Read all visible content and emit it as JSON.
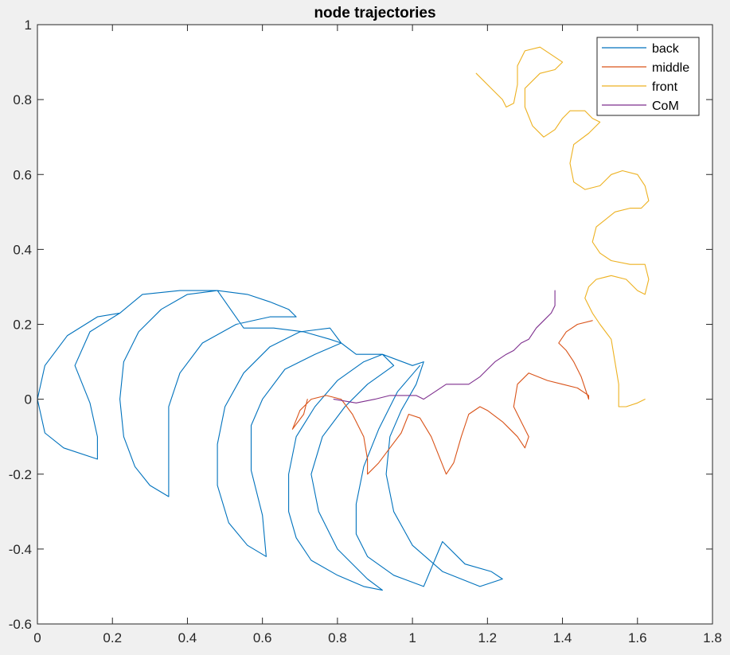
{
  "chart_data": {
    "type": "line",
    "title": "node trajectories",
    "xlabel": "",
    "ylabel": "",
    "xlim": [
      0,
      1.8
    ],
    "ylim": [
      -0.6,
      1
    ],
    "xticks": [
      0,
      0.2,
      0.4,
      0.6,
      0.8,
      1,
      1.2,
      1.4,
      1.6,
      1.8
    ],
    "xtick_labels": [
      "0",
      "0.2",
      "0.4",
      "0.6",
      "0.8",
      "1",
      "1.2",
      "1.4",
      "1.6",
      "1.8"
    ],
    "yticks": [
      -0.6,
      -0.4,
      -0.2,
      0,
      0.2,
      0.4,
      0.6,
      0.8,
      1
    ],
    "ytick_labels": [
      "-0.6",
      "-0.4",
      "-0.2",
      "0",
      "0.2",
      "0.4",
      "0.6",
      "0.8",
      "1"
    ],
    "grid": false,
    "legend_position": "top-right",
    "series": [
      {
        "name": "back",
        "color": "#0072BD",
        "points": [
          [
            0.22,
            0.23
          ],
          [
            0.16,
            0.22
          ],
          [
            0.08,
            0.17
          ],
          [
            0.02,
            0.09
          ],
          [
            0.0,
            0.0
          ],
          [
            0.02,
            -0.09
          ],
          [
            0.07,
            -0.13
          ],
          [
            0.16,
            -0.16
          ],
          [
            0.16,
            -0.1
          ],
          [
            0.14,
            -0.01
          ],
          [
            0.1,
            0.09
          ],
          [
            0.14,
            0.18
          ],
          [
            0.22,
            0.23
          ],
          [
            0.22,
            0.23
          ],
          [
            0.28,
            0.28
          ],
          [
            0.38,
            0.29
          ],
          [
            0.48,
            0.29
          ],
          [
            0.56,
            0.28
          ],
          [
            0.62,
            0.26
          ],
          [
            0.67,
            0.24
          ],
          [
            0.69,
            0.22
          ],
          [
            0.62,
            0.22
          ],
          [
            0.53,
            0.2
          ],
          [
            0.44,
            0.15
          ],
          [
            0.38,
            0.07
          ],
          [
            0.35,
            -0.02
          ],
          [
            0.35,
            -0.13
          ],
          [
            0.35,
            -0.26
          ],
          [
            0.3,
            -0.23
          ],
          [
            0.26,
            -0.18
          ],
          [
            0.23,
            -0.1
          ],
          [
            0.22,
            0.0
          ],
          [
            0.23,
            0.1
          ],
          [
            0.27,
            0.18
          ],
          [
            0.33,
            0.24
          ],
          [
            0.4,
            0.28
          ],
          [
            0.48,
            0.29
          ],
          [
            0.48,
            0.29
          ],
          [
            0.48,
            0.29
          ],
          [
            0.55,
            0.19
          ],
          [
            0.63,
            0.19
          ],
          [
            0.71,
            0.18
          ],
          [
            0.78,
            0.16
          ],
          [
            0.81,
            0.15
          ],
          [
            0.74,
            0.12
          ],
          [
            0.66,
            0.08
          ],
          [
            0.6,
            0.0
          ],
          [
            0.57,
            -0.07
          ],
          [
            0.57,
            -0.19
          ],
          [
            0.6,
            -0.31
          ],
          [
            0.61,
            -0.42
          ],
          [
            0.56,
            -0.39
          ],
          [
            0.51,
            -0.33
          ],
          [
            0.48,
            -0.23
          ],
          [
            0.48,
            -0.12
          ],
          [
            0.5,
            -0.02
          ],
          [
            0.55,
            0.07
          ],
          [
            0.62,
            0.14
          ],
          [
            0.7,
            0.18
          ],
          [
            0.78,
            0.19
          ],
          [
            0.78,
            0.19
          ],
          [
            0.81,
            0.15
          ],
          [
            0.85,
            0.12
          ],
          [
            0.92,
            0.12
          ],
          [
            0.95,
            0.09
          ],
          [
            0.88,
            0.04
          ],
          [
            0.82,
            -0.02
          ],
          [
            0.76,
            -0.1
          ],
          [
            0.73,
            -0.2
          ],
          [
            0.75,
            -0.3
          ],
          [
            0.8,
            -0.4
          ],
          [
            0.88,
            -0.48
          ],
          [
            0.92,
            -0.51
          ],
          [
            0.87,
            -0.5
          ],
          [
            0.8,
            -0.47
          ],
          [
            0.73,
            -0.43
          ],
          [
            0.69,
            -0.37
          ],
          [
            0.67,
            -0.3
          ],
          [
            0.67,
            -0.2
          ],
          [
            0.69,
            -0.1
          ],
          [
            0.74,
            -0.02
          ],
          [
            0.8,
            0.05
          ],
          [
            0.87,
            0.1
          ],
          [
            0.92,
            0.12
          ],
          [
            0.92,
            0.12
          ],
          [
            1.0,
            0.09
          ],
          [
            1.03,
            0.1
          ],
          [
            1.01,
            0.04
          ],
          [
            0.97,
            -0.03
          ],
          [
            0.94,
            -0.1
          ],
          [
            0.93,
            -0.2
          ],
          [
            0.95,
            -0.3
          ],
          [
            1.0,
            -0.39
          ],
          [
            1.08,
            -0.46
          ],
          [
            1.18,
            -0.5
          ],
          [
            1.24,
            -0.48
          ],
          [
            1.21,
            -0.46
          ],
          [
            1.14,
            -0.44
          ],
          [
            1.08,
            -0.38
          ],
          [
            1.08,
            -0.38
          ],
          [
            1.03,
            -0.5
          ],
          [
            0.95,
            -0.47
          ],
          [
            0.88,
            -0.42
          ],
          [
            0.85,
            -0.36
          ],
          [
            0.85,
            -0.28
          ],
          [
            0.87,
            -0.18
          ],
          [
            0.91,
            -0.08
          ],
          [
            0.96,
            0.02
          ],
          [
            1.02,
            0.09
          ]
        ]
      },
      {
        "name": "middle",
        "color": "#D95319",
        "points": [
          [
            0.72,
            0.0
          ],
          [
            0.71,
            -0.04
          ],
          [
            0.68,
            -0.08
          ],
          [
            0.7,
            -0.03
          ],
          [
            0.73,
            0.0
          ],
          [
            0.77,
            0.01
          ],
          [
            0.81,
            0.0
          ],
          [
            0.84,
            -0.04
          ],
          [
            0.87,
            -0.1
          ],
          [
            0.88,
            -0.16
          ],
          [
            0.88,
            -0.2
          ],
          [
            0.91,
            -0.17
          ],
          [
            0.94,
            -0.13
          ],
          [
            0.97,
            -0.09
          ],
          [
            0.99,
            -0.04
          ],
          [
            1.02,
            -0.05
          ],
          [
            1.05,
            -0.1
          ],
          [
            1.07,
            -0.15
          ],
          [
            1.09,
            -0.2
          ],
          [
            1.11,
            -0.17
          ],
          [
            1.13,
            -0.1
          ],
          [
            1.15,
            -0.04
          ],
          [
            1.18,
            -0.02
          ],
          [
            1.2,
            -0.03
          ],
          [
            1.24,
            -0.06
          ],
          [
            1.28,
            -0.1
          ],
          [
            1.3,
            -0.13
          ],
          [
            1.31,
            -0.1
          ],
          [
            1.29,
            -0.06
          ],
          [
            1.27,
            -0.02
          ],
          [
            1.28,
            0.04
          ],
          [
            1.31,
            0.07
          ],
          [
            1.36,
            0.05
          ],
          [
            1.4,
            0.04
          ],
          [
            1.44,
            0.03
          ],
          [
            1.47,
            0.01
          ],
          [
            1.47,
            0.0
          ],
          [
            1.45,
            0.06
          ],
          [
            1.43,
            0.1
          ],
          [
            1.41,
            0.13
          ],
          [
            1.39,
            0.15
          ],
          [
            1.41,
            0.18
          ],
          [
            1.44,
            0.2
          ],
          [
            1.48,
            0.21
          ]
        ]
      },
      {
        "name": "front",
        "color": "#EDB120",
        "points": [
          [
            1.17,
            0.87
          ],
          [
            1.21,
            0.83
          ],
          [
            1.24,
            0.8
          ],
          [
            1.25,
            0.78
          ],
          [
            1.27,
            0.79
          ],
          [
            1.28,
            0.84
          ],
          [
            1.28,
            0.89
          ],
          [
            1.3,
            0.93
          ],
          [
            1.34,
            0.94
          ],
          [
            1.37,
            0.92
          ],
          [
            1.4,
            0.9
          ],
          [
            1.38,
            0.88
          ],
          [
            1.34,
            0.87
          ],
          [
            1.3,
            0.83
          ],
          [
            1.3,
            0.78
          ],
          [
            1.32,
            0.73
          ],
          [
            1.35,
            0.7
          ],
          [
            1.38,
            0.72
          ],
          [
            1.4,
            0.75
          ],
          [
            1.42,
            0.77
          ],
          [
            1.46,
            0.77
          ],
          [
            1.48,
            0.75
          ],
          [
            1.5,
            0.74
          ],
          [
            1.47,
            0.71
          ],
          [
            1.43,
            0.68
          ],
          [
            1.42,
            0.63
          ],
          [
            1.43,
            0.58
          ],
          [
            1.46,
            0.56
          ],
          [
            1.5,
            0.57
          ],
          [
            1.53,
            0.6
          ],
          [
            1.56,
            0.61
          ],
          [
            1.6,
            0.6
          ],
          [
            1.62,
            0.57
          ],
          [
            1.63,
            0.53
          ],
          [
            1.61,
            0.51
          ],
          [
            1.58,
            0.51
          ],
          [
            1.54,
            0.5
          ],
          [
            1.49,
            0.46
          ],
          [
            1.48,
            0.42
          ],
          [
            1.5,
            0.39
          ],
          [
            1.53,
            0.37
          ],
          [
            1.58,
            0.36
          ],
          [
            1.62,
            0.36
          ],
          [
            1.63,
            0.32
          ],
          [
            1.62,
            0.28
          ],
          [
            1.6,
            0.29
          ],
          [
            1.57,
            0.32
          ],
          [
            1.53,
            0.33
          ],
          [
            1.49,
            0.32
          ],
          [
            1.47,
            0.3
          ],
          [
            1.46,
            0.27
          ],
          [
            1.48,
            0.23
          ],
          [
            1.5,
            0.2
          ],
          [
            1.53,
            0.16
          ],
          [
            1.54,
            0.1
          ],
          [
            1.55,
            0.04
          ],
          [
            1.55,
            0.0
          ],
          [
            1.55,
            -0.02
          ],
          [
            1.57,
            -0.02
          ],
          [
            1.6,
            -0.01
          ],
          [
            1.62,
            0.0
          ]
        ]
      },
      {
        "name": "CoM",
        "color": "#7E2F8E",
        "points": [
          [
            0.79,
            0.0
          ],
          [
            0.85,
            -0.01
          ],
          [
            0.9,
            0.0
          ],
          [
            0.94,
            0.01
          ],
          [
            0.98,
            0.01
          ],
          [
            1.01,
            0.01
          ],
          [
            1.03,
            0.0
          ],
          [
            1.06,
            0.02
          ],
          [
            1.09,
            0.04
          ],
          [
            1.12,
            0.04
          ],
          [
            1.15,
            0.04
          ],
          [
            1.18,
            0.06
          ],
          [
            1.2,
            0.08
          ],
          [
            1.22,
            0.1
          ],
          [
            1.25,
            0.12
          ],
          [
            1.27,
            0.13
          ],
          [
            1.29,
            0.15
          ],
          [
            1.31,
            0.16
          ],
          [
            1.33,
            0.19
          ],
          [
            1.35,
            0.21
          ],
          [
            1.37,
            0.23
          ],
          [
            1.38,
            0.25
          ],
          [
            1.38,
            0.29
          ]
        ]
      }
    ]
  }
}
